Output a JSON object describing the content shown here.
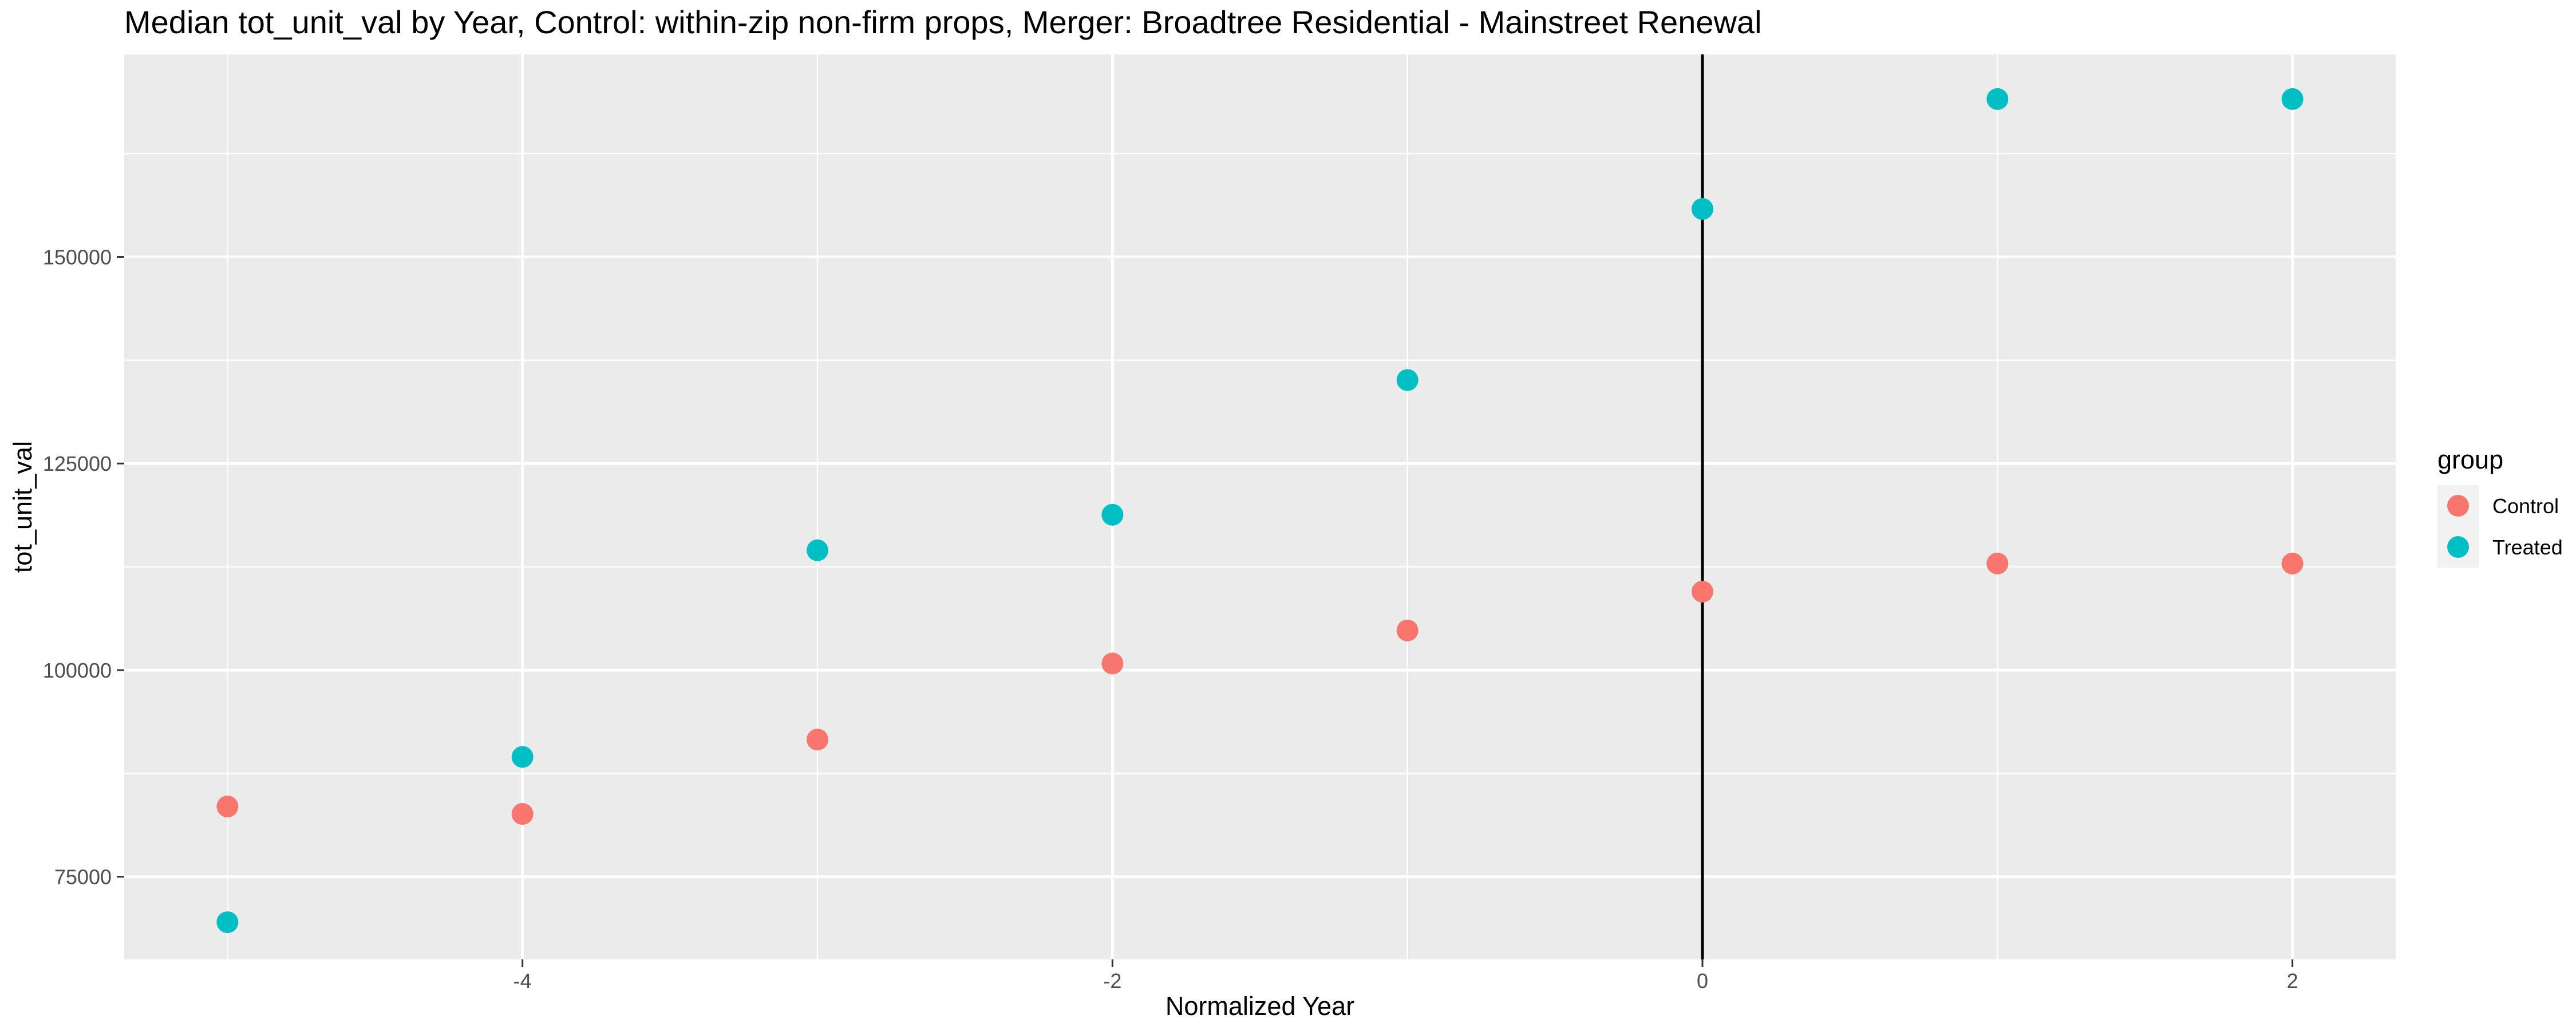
{
  "chart_data": {
    "type": "scatter",
    "title": "Median tot_unit_val by Year, Control: within-zip non-firm props, Merger: Broadtree Residential - Mainstreet Renewal",
    "xlabel": "Normalized Year",
    "ylabel": "tot_unit_val",
    "xlim": [
      -5.35,
      2.35
    ],
    "ylim": [
      65000,
      174500
    ],
    "x_ticks": [
      -4,
      -2,
      0,
      2
    ],
    "x_tick_labels": [
      "-4",
      "-2",
      "0",
      "2"
    ],
    "x_minor_ticks": [
      -5,
      -3,
      -1,
      1
    ],
    "y_ticks": [
      75000,
      100000,
      125000,
      150000
    ],
    "y_tick_labels": [
      "75000",
      "100000",
      "125000",
      "150000"
    ],
    "y_minor_ticks": [
      87500,
      112500,
      137500,
      162500
    ],
    "grid": true,
    "reference_line": {
      "x": 0,
      "color": "#000000"
    },
    "legend": {
      "title": "group",
      "position": "right"
    },
    "series": [
      {
        "name": "Control",
        "color": "#F8766D",
        "x": [
          -5,
          -4,
          -3,
          -2,
          -1,
          0,
          1,
          2
        ],
        "y": [
          83500,
          82600,
          91600,
          100800,
          104800,
          109500,
          112900,
          112900
        ]
      },
      {
        "name": "Treated",
        "color": "#00BFC4",
        "x": [
          -5,
          -4,
          -3,
          -2,
          -1,
          0,
          1,
          2
        ],
        "y": [
          69500,
          89500,
          114500,
          118800,
          135100,
          155800,
          169100,
          169100
        ]
      }
    ]
  }
}
